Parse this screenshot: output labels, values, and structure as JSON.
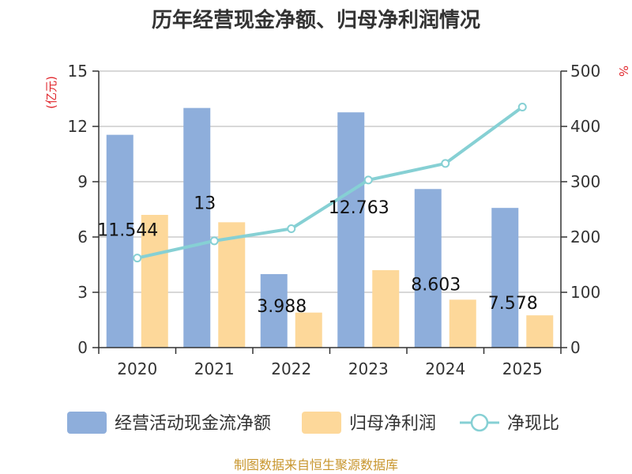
{
  "chart_data": {
    "type": "bar",
    "title": "历年经营现金净额、归母净利润情况",
    "categories": [
      "2020",
      "2021",
      "2022",
      "2023",
      "2024",
      "2025"
    ],
    "series": [
      {
        "name": "经营活动现金流净额",
        "type": "bar",
        "axis": "left",
        "color": "#8eaedb",
        "values": [
          11.544,
          13,
          3.988,
          12.763,
          8.603,
          7.578
        ],
        "labels": [
          "11.544",
          "13",
          "3.988",
          "12.763",
          "8.603",
          "7.578"
        ]
      },
      {
        "name": "归母净利润",
        "type": "bar",
        "axis": "left",
        "color": "#fdd89a",
        "values": [
          7.2,
          6.8,
          1.9,
          4.2,
          2.6,
          1.75
        ]
      },
      {
        "name": "净现比",
        "type": "line",
        "axis": "right",
        "color": "#86d0d4",
        "values": [
          162,
          193,
          215,
          303,
          333,
          435
        ]
      }
    ],
    "y_left": {
      "unit": "(亿元)",
      "ylim": [
        0,
        15
      ],
      "ticks": [
        "0",
        "3",
        "6",
        "9",
        "12",
        "15"
      ]
    },
    "y_right": {
      "unit": "%",
      "ylim": [
        0,
        500
      ],
      "ticks": [
        "0",
        "100",
        "200",
        "300",
        "400",
        "500"
      ]
    },
    "grid": true,
    "legend": "bottom"
  },
  "source": "制图数据来自恒生聚源数据库"
}
